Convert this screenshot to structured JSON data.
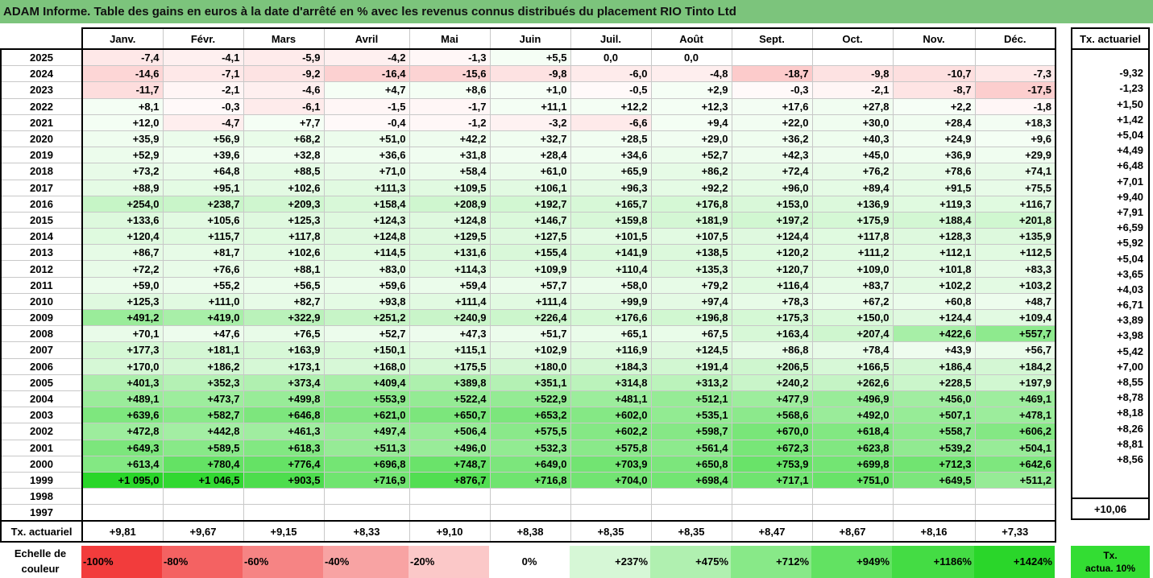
{
  "title": "ADAM Informe. Table des gains en euros à la date d'arrêté en % avec les revenus connus distribués du placement RIO Tinto Ltd",
  "chart_data": {
    "type": "table",
    "months": [
      "Janv.",
      "Févr.",
      "Mars",
      "Avril",
      "Mai",
      "Juin",
      "Juil.",
      "Août",
      "Sept.",
      "Oct.",
      "Nov.",
      "Déc."
    ],
    "side_header": "Tx. actuariel",
    "footer_label": "Tx. actuariel",
    "rows": [
      {
        "year": "2025",
        "values": [
          "-7,4",
          "-4,1",
          "-5,9",
          "-4,2",
          "-1,3",
          "+5,5",
          "0,0",
          "0,0",
          "",
          "",
          "",
          ""
        ],
        "tx": ""
      },
      {
        "year": "2024",
        "values": [
          "-14,6",
          "-7,1",
          "-9,2",
          "-16,4",
          "-15,6",
          "-9,8",
          "-6,0",
          "-4,8",
          "-18,7",
          "-9,8",
          "-10,7",
          "-7,3"
        ],
        "tx": "-9,32"
      },
      {
        "year": "2023",
        "values": [
          "-11,7",
          "-2,1",
          "-4,6",
          "+4,7",
          "+8,6",
          "+1,0",
          "-0,5",
          "+2,9",
          "-0,3",
          "-2,1",
          "-8,7",
          "-17,5"
        ],
        "tx": "-1,23"
      },
      {
        "year": "2022",
        "values": [
          "+8,1",
          "-0,3",
          "-6,1",
          "-1,5",
          "-1,7",
          "+11,1",
          "+12,2",
          "+12,3",
          "+17,6",
          "+27,8",
          "+2,2",
          "-1,8"
        ],
        "tx": "+1,50"
      },
      {
        "year": "2021",
        "values": [
          "+12,0",
          "-4,7",
          "+7,7",
          "-0,4",
          "-1,2",
          "-3,2",
          "-6,6",
          "+9,4",
          "+22,0",
          "+30,0",
          "+28,4",
          "+18,3"
        ],
        "tx": "+1,42"
      },
      {
        "year": "2020",
        "values": [
          "+35,9",
          "+56,9",
          "+68,2",
          "+51,0",
          "+42,2",
          "+32,7",
          "+28,5",
          "+29,0",
          "+36,2",
          "+40,3",
          "+24,9",
          "+9,6"
        ],
        "tx": "+5,04"
      },
      {
        "year": "2019",
        "values": [
          "+52,9",
          "+39,6",
          "+32,8",
          "+36,6",
          "+31,8",
          "+28,4",
          "+34,6",
          "+52,7",
          "+42,3",
          "+45,0",
          "+36,9",
          "+29,9"
        ],
        "tx": "+4,49"
      },
      {
        "year": "2018",
        "values": [
          "+73,2",
          "+64,8",
          "+88,5",
          "+71,0",
          "+58,4",
          "+61,0",
          "+65,9",
          "+86,2",
          "+72,4",
          "+76,2",
          "+78,6",
          "+74,1"
        ],
        "tx": "+6,48"
      },
      {
        "year": "2017",
        "values": [
          "+88,9",
          "+95,1",
          "+102,6",
          "+111,3",
          "+109,5",
          "+106,1",
          "+96,3",
          "+92,2",
          "+96,0",
          "+89,4",
          "+91,5",
          "+75,5"
        ],
        "tx": "+7,01"
      },
      {
        "year": "2016",
        "values": [
          "+254,0",
          "+238,7",
          "+209,3",
          "+158,4",
          "+208,9",
          "+192,7",
          "+165,7",
          "+176,8",
          "+153,0",
          "+136,9",
          "+119,3",
          "+116,7"
        ],
        "tx": "+9,40"
      },
      {
        "year": "2015",
        "values": [
          "+133,6",
          "+105,6",
          "+125,3",
          "+124,3",
          "+124,8",
          "+146,7",
          "+159,8",
          "+181,9",
          "+197,2",
          "+175,9",
          "+188,4",
          "+201,8"
        ],
        "tx": "+7,91"
      },
      {
        "year": "2014",
        "values": [
          "+120,4",
          "+115,7",
          "+117,8",
          "+124,8",
          "+129,5",
          "+127,5",
          "+101,5",
          "+107,5",
          "+124,4",
          "+117,8",
          "+128,3",
          "+135,9"
        ],
        "tx": "+6,59"
      },
      {
        "year": "2013",
        "values": [
          "+86,7",
          "+81,7",
          "+102,6",
          "+114,5",
          "+131,6",
          "+155,4",
          "+141,9",
          "+138,5",
          "+120,2",
          "+111,2",
          "+112,1",
          "+112,5"
        ],
        "tx": "+5,92"
      },
      {
        "year": "2012",
        "values": [
          "+72,2",
          "+76,6",
          "+88,1",
          "+83,0",
          "+114,3",
          "+109,9",
          "+110,4",
          "+135,3",
          "+120,7",
          "+109,0",
          "+101,8",
          "+83,3"
        ],
        "tx": "+5,04"
      },
      {
        "year": "2011",
        "values": [
          "+59,0",
          "+55,2",
          "+56,5",
          "+59,6",
          "+59,4",
          "+57,7",
          "+58,0",
          "+79,2",
          "+116,4",
          "+83,7",
          "+102,2",
          "+103,2"
        ],
        "tx": "+3,65"
      },
      {
        "year": "2010",
        "values": [
          "+125,3",
          "+111,0",
          "+82,7",
          "+93,8",
          "+111,4",
          "+111,4",
          "+99,9",
          "+97,4",
          "+78,3",
          "+67,2",
          "+60,8",
          "+48,7"
        ],
        "tx": "+4,03"
      },
      {
        "year": "2009",
        "values": [
          "+491,2",
          "+419,0",
          "+322,9",
          "+251,2",
          "+240,9",
          "+226,4",
          "+176,6",
          "+196,8",
          "+175,3",
          "+150,0",
          "+124,4",
          "+109,4"
        ],
        "tx": "+6,71"
      },
      {
        "year": "2008",
        "values": [
          "+70,1",
          "+47,6",
          "+76,5",
          "+52,7",
          "+47,3",
          "+51,7",
          "+65,1",
          "+67,5",
          "+163,4",
          "+207,4",
          "+422,6",
          "+557,7"
        ],
        "tx": "+3,89"
      },
      {
        "year": "2007",
        "values": [
          "+177,3",
          "+181,1",
          "+163,9",
          "+150,1",
          "+115,1",
          "+102,9",
          "+116,9",
          "+124,5",
          "+86,8",
          "+78,4",
          "+43,9",
          "+56,7"
        ],
        "tx": "+3,98"
      },
      {
        "year": "2006",
        "values": [
          "+170,0",
          "+186,2",
          "+173,1",
          "+168,0",
          "+175,5",
          "+180,0",
          "+184,3",
          "+191,4",
          "+206,5",
          "+166,5",
          "+186,4",
          "+184,2"
        ],
        "tx": "+5,42"
      },
      {
        "year": "2005",
        "values": [
          "+401,3",
          "+352,3",
          "+373,4",
          "+409,4",
          "+389,8",
          "+351,1",
          "+314,8",
          "+313,2",
          "+240,2",
          "+262,6",
          "+228,5",
          "+197,9"
        ],
        "tx": "+7,00"
      },
      {
        "year": "2004",
        "values": [
          "+489,1",
          "+473,7",
          "+499,8",
          "+553,9",
          "+522,4",
          "+522,9",
          "+481,1",
          "+512,1",
          "+477,9",
          "+496,9",
          "+456,0",
          "+469,1"
        ],
        "tx": "+8,55"
      },
      {
        "year": "2003",
        "values": [
          "+639,6",
          "+582,7",
          "+646,8",
          "+621,0",
          "+650,7",
          "+653,2",
          "+602,0",
          "+535,1",
          "+568,6",
          "+492,0",
          "+507,1",
          "+478,1"
        ],
        "tx": "+8,78"
      },
      {
        "year": "2002",
        "values": [
          "+472,8",
          "+442,8",
          "+461,3",
          "+497,4",
          "+506,4",
          "+575,5",
          "+602,2",
          "+598,7",
          "+670,0",
          "+618,4",
          "+558,7",
          "+606,2"
        ],
        "tx": "+8,18"
      },
      {
        "year": "2001",
        "values": [
          "+649,3",
          "+589,5",
          "+618,3",
          "+511,3",
          "+496,0",
          "+532,3",
          "+575,8",
          "+561,4",
          "+672,3",
          "+623,8",
          "+539,2",
          "+504,1"
        ],
        "tx": "+8,26"
      },
      {
        "year": "2000",
        "values": [
          "+613,4",
          "+780,4",
          "+776,4",
          "+696,8",
          "+748,7",
          "+649,0",
          "+703,9",
          "+650,8",
          "+753,9",
          "+699,8",
          "+712,3",
          "+642,6"
        ],
        "tx": "+8,81"
      },
      {
        "year": "1999",
        "values": [
          "+1 095,0",
          "+1 046,5",
          "+903,5",
          "+716,9",
          "+876,7",
          "+716,8",
          "+704,0",
          "+698,4",
          "+717,1",
          "+751,0",
          "+649,5",
          "+511,2"
        ],
        "tx": "+8,56"
      },
      {
        "year": "1998",
        "values": [
          "",
          "",
          "",
          "",
          "",
          "",
          "",
          "",
          "",
          "",
          "",
          ""
        ],
        "tx": ""
      },
      {
        "year": "1997",
        "values": [
          "",
          "",
          "",
          "",
          "",
          "",
          "",
          "",
          "",
          "",
          "",
          ""
        ],
        "tx": ""
      }
    ],
    "footer_values": [
      "+9,81",
      "+9,67",
      "+9,15",
      "+8,33",
      "+9,10",
      "+8,38",
      "+8,35",
      "+8,35",
      "+8,47",
      "+8,67",
      "+8,16",
      "+7,33"
    ],
    "footer_total": "+10,06",
    "scale": {
      "label_line1": "Echelle de",
      "label_line2": "couleur",
      "steps": [
        {
          "label": "-100%",
          "color": "#f23c3c",
          "align": "left"
        },
        {
          "label": "-80%",
          "color": "#f46262",
          "align": "left"
        },
        {
          "label": "-60%",
          "color": "#f68484",
          "align": "left"
        },
        {
          "label": "-40%",
          "color": "#f8a3a3",
          "align": "left"
        },
        {
          "label": "-20%",
          "color": "#fbc8c8",
          "align": "left"
        },
        {
          "label": "0%",
          "color": "#ffffff",
          "align": "center"
        },
        {
          "label": "+237%",
          "color": "#d6f7d6",
          "align": "right"
        },
        {
          "label": "+475%",
          "color": "#b0f0b0",
          "align": "right"
        },
        {
          "label": "+712%",
          "color": "#88e988",
          "align": "right"
        },
        {
          "label": "+949%",
          "color": "#62e262",
          "align": "right"
        },
        {
          "label": "+1186%",
          "color": "#44dc44",
          "align": "right"
        },
        {
          "label": "+1424%",
          "color": "#2ad62a",
          "align": "right"
        }
      ],
      "legend_line1": "Tx.",
      "legend_line2": "actua. 10%"
    }
  }
}
